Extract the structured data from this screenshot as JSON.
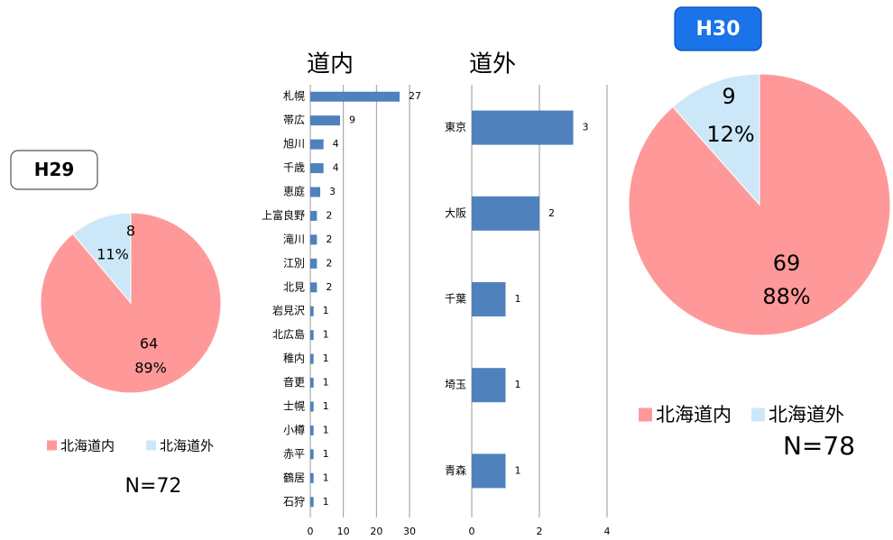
{
  "chart_data": [
    {
      "type": "pie",
      "badge": "H29",
      "note": "N=72",
      "categories": [
        "北海道内",
        "北海道外"
      ],
      "values": [
        64,
        8
      ],
      "percent_labels": [
        "89%",
        "11%"
      ],
      "colors": [
        "#ff9999",
        "#cce8f8"
      ]
    },
    {
      "type": "bar",
      "title": "道内",
      "orientation": "horizontal",
      "color": "#4f81bd",
      "categories": [
        "札幌",
        "帯広",
        "旭川",
        "千歳",
        "恵庭",
        "上富良野",
        "滝川",
        "江別",
        "北見",
        "岩見沢",
        "北広島",
        "稚内",
        "音更",
        "士幌",
        "小樽",
        "赤平",
        "鶴居",
        "石狩"
      ],
      "values": [
        27,
        9,
        4,
        4,
        3,
        2,
        2,
        2,
        2,
        1,
        1,
        1,
        1,
        1,
        1,
        1,
        1,
        1
      ],
      "xlim": [
        0,
        30
      ],
      "xticks": [
        0,
        10,
        20,
        30
      ],
      "grid": true
    },
    {
      "type": "bar",
      "title": "道外",
      "orientation": "horizontal",
      "color": "#4f81bd",
      "categories": [
        "東京",
        "大阪",
        "千葉",
        "埼玉",
        "青森"
      ],
      "values": [
        3,
        2,
        1,
        1,
        1
      ],
      "xlim": [
        0,
        4
      ],
      "xticks": [
        0,
        2,
        4
      ],
      "grid": true
    },
    {
      "type": "pie",
      "badge": "H30",
      "note": "N=78",
      "categories": [
        "北海道内",
        "北海道外"
      ],
      "values": [
        69,
        9
      ],
      "percent_labels": [
        "88%",
        "12%"
      ],
      "colors": [
        "#ff9999",
        "#cce8f8"
      ]
    }
  ]
}
